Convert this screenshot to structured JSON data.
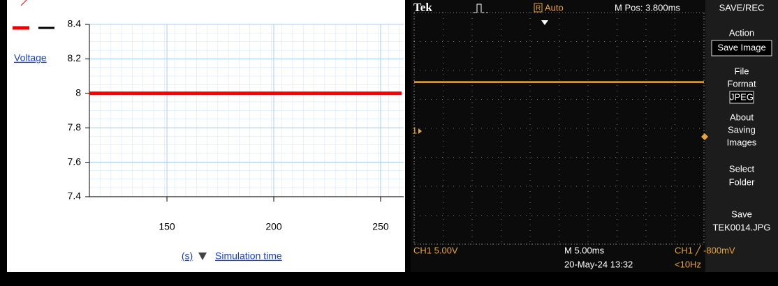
{
  "chart_data": [
    {
      "type": "line",
      "series_name": "Voltage",
      "x": [
        113.7,
        259.8
      ],
      "values": [
        8,
        8
      ],
      "color": "#ff0000",
      "xlim": [
        113.7,
        260.8
      ],
      "xticks": [
        150,
        200,
        250
      ],
      "ylim": [
        7.4,
        8.4
      ],
      "yticks": [
        7.4,
        7.6,
        7.8,
        8,
        8.2,
        8.4
      ],
      "x_unit": "(s)",
      "x_label": "Simulation time",
      "grid": true
    },
    {
      "type": "line",
      "x": [
        -21.2,
        28.8
      ],
      "values": [
        8,
        8
      ],
      "color": "#e8a53a",
      "xlim": [
        -21.2,
        28.8
      ],
      "ylim": [
        -20,
        20
      ]
    }
  ],
  "scope_ui": {
    "brand": "Tek",
    "trigger_state": "Auto",
    "trigger_flag": "R",
    "m_pos": "M Pos: 3.800ms",
    "menu_title": "SAVE/REC",
    "action": "Action",
    "save_image": "Save Image",
    "file_format": [
      "File",
      "Format"
    ],
    "jpeg": "JPEG",
    "about": [
      "About",
      "Saving",
      "Images"
    ],
    "select_folder": [
      "Select",
      "Folder"
    ],
    "save": [
      "Save",
      "TEK0014.JPG"
    ],
    "ch1_scale": "CH1  5.00V",
    "timebase": "M 5.00ms",
    "date": "20-May-24 13:32",
    "trigger": "CH1 ╱ -800mV",
    "freq": "<10Hz",
    "ch_marker": "1"
  }
}
